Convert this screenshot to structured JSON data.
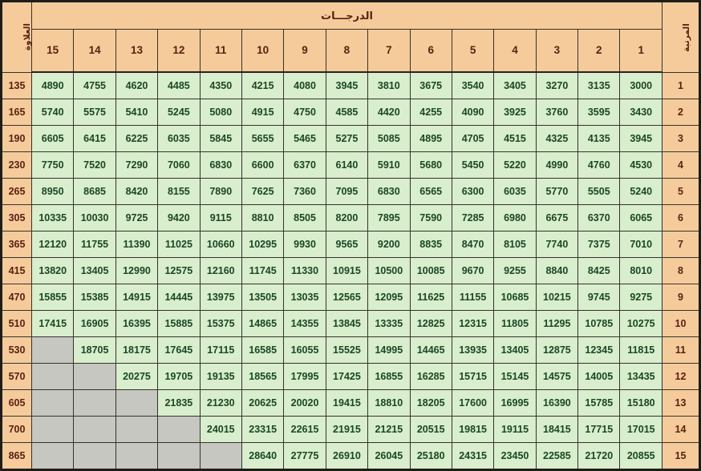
{
  "colors": {
    "header_fill": "#f6cb9b",
    "data_fill": "#d8eecd",
    "empty_fill": "#c6c7c1",
    "grid_line": "#35332b",
    "header_text": "#5a2110",
    "data_text": "#1b4723"
  },
  "chart_data": {
    "type": "table",
    "title": "الدرجـــات",
    "left_axis_label": "العلاوة السنوية",
    "right_axis_label": "المرتبة",
    "columns": [
      "15",
      "14",
      "13",
      "12",
      "11",
      "10",
      "9",
      "8",
      "7",
      "6",
      "5",
      "4",
      "3",
      "2",
      "1"
    ],
    "rows": [
      {
        "increment": 135,
        "rank": 1,
        "values": [
          4890,
          4755,
          4620,
          4485,
          4350,
          4215,
          4080,
          3945,
          3810,
          3675,
          3540,
          3405,
          3270,
          3135,
          3000
        ]
      },
      {
        "increment": 165,
        "rank": 2,
        "values": [
          5740,
          5575,
          5410,
          5245,
          5080,
          4915,
          4750,
          4585,
          4420,
          4255,
          4090,
          3925,
          3760,
          3595,
          3430
        ]
      },
      {
        "increment": 190,
        "rank": 3,
        "values": [
          6605,
          6415,
          6225,
          6035,
          5845,
          5655,
          5465,
          5275,
          5085,
          4895,
          4705,
          4515,
          4325,
          4135,
          3945
        ]
      },
      {
        "increment": 230,
        "rank": 4,
        "values": [
          7750,
          7520,
          7290,
          7060,
          6830,
          6600,
          6370,
          6140,
          5910,
          5680,
          5450,
          5220,
          4990,
          4760,
          4530
        ]
      },
      {
        "increment": 265,
        "rank": 5,
        "values": [
          8950,
          8685,
          8420,
          8155,
          7890,
          7625,
          7360,
          7095,
          6830,
          6565,
          6300,
          6035,
          5770,
          5505,
          5240
        ]
      },
      {
        "increment": 305,
        "rank": 6,
        "values": [
          10335,
          10030,
          9725,
          9420,
          9115,
          8810,
          8505,
          8200,
          7895,
          7590,
          7285,
          6980,
          6675,
          6370,
          6065
        ]
      },
      {
        "increment": 365,
        "rank": 7,
        "values": [
          12120,
          11755,
          11390,
          11025,
          10660,
          10295,
          9930,
          9565,
          9200,
          8835,
          8470,
          8105,
          7740,
          7375,
          7010
        ]
      },
      {
        "increment": 415,
        "rank": 8,
        "values": [
          13820,
          13405,
          12990,
          12575,
          12160,
          11745,
          11330,
          10915,
          10500,
          10085,
          9670,
          9255,
          8840,
          8425,
          8010
        ]
      },
      {
        "increment": 470,
        "rank": 9,
        "values": [
          15855,
          15385,
          14915,
          14445,
          13975,
          13505,
          13035,
          12565,
          12095,
          11625,
          11155,
          10685,
          10215,
          9745,
          9275
        ]
      },
      {
        "increment": 510,
        "rank": 10,
        "values": [
          17415,
          16905,
          16395,
          15885,
          15375,
          14865,
          14355,
          13845,
          13335,
          12825,
          12315,
          11805,
          11295,
          10785,
          10275
        ]
      },
      {
        "increment": 530,
        "rank": 11,
        "values": [
          null,
          18705,
          18175,
          17645,
          17115,
          16585,
          16055,
          15525,
          14995,
          14465,
          13935,
          13405,
          12875,
          12345,
          11815
        ]
      },
      {
        "increment": 570,
        "rank": 12,
        "values": [
          null,
          null,
          20275,
          19705,
          19135,
          18565,
          17995,
          17425,
          16855,
          16285,
          15715,
          15145,
          14575,
          14005,
          13435
        ]
      },
      {
        "increment": 605,
        "rank": 13,
        "values": [
          null,
          null,
          null,
          21835,
          21230,
          20625,
          20020,
          19415,
          18810,
          18205,
          17600,
          16995,
          16390,
          15785,
          15180
        ]
      },
      {
        "increment": 700,
        "rank": 14,
        "values": [
          null,
          null,
          null,
          null,
          24015,
          23315,
          22615,
          21915,
          21215,
          20515,
          19815,
          19115,
          18415,
          17715,
          17015
        ]
      },
      {
        "increment": 865,
        "rank": 15,
        "values": [
          null,
          null,
          null,
          null,
          null,
          28640,
          27775,
          26910,
          26045,
          25180,
          24315,
          23450,
          22585,
          21720,
          20855
        ]
      }
    ]
  }
}
